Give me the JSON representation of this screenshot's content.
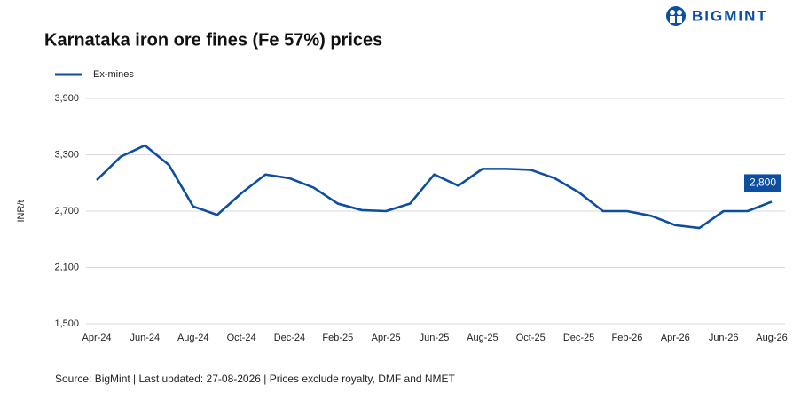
{
  "brand": "BIGMINT",
  "chart_data": {
    "type": "line",
    "title": "Karnataka iron ore fines (Fe 57%) prices",
    "y_label": "INR/t",
    "source": "Source: BigMint | Last updated: 27-08-2026 | Prices exclude royalty, DMF and NMET",
    "categories": [
      "Apr-24",
      null,
      "Jun-24",
      null,
      "Aug-24",
      null,
      "Oct-24",
      null,
      "Dec-24",
      null,
      "Feb-25",
      null,
      "Apr-25",
      null,
      "Jun-25",
      null,
      "Aug-25",
      null,
      "Oct-25",
      null,
      "Dec-25",
      null,
      "Feb-26",
      null,
      "Apr-26",
      null,
      "Jun-26",
      null,
      "Aug-26"
    ],
    "series": [
      {
        "name": "Ex-mines",
        "color": "#0b4ea2",
        "values": [
          3030,
          3280,
          3400,
          3190,
          2750,
          2660,
          2890,
          3090,
          3050,
          2950,
          2780,
          2710,
          2700,
          2780,
          3090,
          2970,
          3150,
          3150,
          3140,
          3050,
          2900,
          2700,
          2700,
          2650,
          2550,
          2520,
          2700,
          2700,
          2800
        ],
        "value_labels": [
          null,
          null,
          null,
          null,
          null,
          null,
          null,
          null,
          null,
          null,
          null,
          null,
          null,
          null,
          null,
          null,
          null,
          null,
          null,
          null,
          null,
          null,
          null,
          null,
          null,
          null,
          null,
          null,
          "2,800"
        ]
      }
    ],
    "ylim": [
      1500,
      3900
    ],
    "yticks": [
      {
        "value": 1500,
        "label": "1,500"
      },
      {
        "value": 2100,
        "label": "2,100"
      },
      {
        "value": 2700,
        "label": "2,700"
      },
      {
        "value": 3300,
        "label": "3,300"
      },
      {
        "value": 3900,
        "label": "3,900"
      }
    ],
    "grid": true
  }
}
